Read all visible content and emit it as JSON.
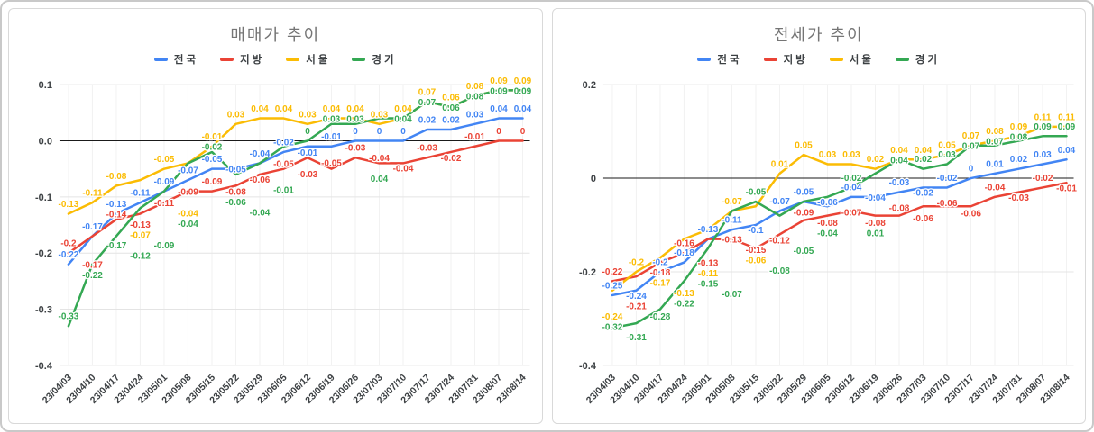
{
  "colors": {
    "nationwide": "#4285f4",
    "regional": "#ea4335",
    "seoul": "#fbbc04",
    "gyeonggi": "#34a853",
    "title_gray": "#757575",
    "axis_text": "#3c4043",
    "gridline": "#e4e4e4",
    "zero_line": "#1a1a1a",
    "panel_border": "#d9d9d9"
  },
  "chart_data": [
    {
      "type": "line",
      "title": "매매가 추이",
      "legend_position": "top",
      "grid": true,
      "ylim": [
        -0.4,
        0.1
      ],
      "y_ticks": [
        {
          "value": 0.1,
          "label": "0.1"
        },
        {
          "value": 0.0,
          "label": "0.0"
        },
        {
          "value": -0.1,
          "label": "-0.1"
        },
        {
          "value": -0.2,
          "label": "-0.2"
        },
        {
          "value": -0.3,
          "label": "-0.3"
        },
        {
          "value": -0.4,
          "label": "-0.4"
        }
      ],
      "categories": [
        "23/04/03",
        "23/04/10",
        "23/04/17",
        "23/04/24",
        "23/05/01",
        "23/05/08",
        "23/05/15",
        "23/05/22",
        "23/05/29",
        "23/06/05",
        "23/06/12",
        "23/06/19",
        "23/06/26",
        "23/07/03",
        "23/07/10",
        "23/07/17",
        "23/07/24",
        "23/07/31",
        "23/08/07",
        "23/08/14"
      ],
      "series": [
        {
          "name": "전국",
          "color": "#4285f4",
          "values": [
            -0.22,
            -0.17,
            -0.13,
            -0.11,
            -0.09,
            -0.07,
            -0.05,
            -0.05,
            -0.04,
            -0.02,
            -0.01,
            -0.01,
            0,
            0,
            0,
            0.02,
            0.02,
            0.03,
            0.04,
            0.04
          ]
        },
        {
          "name": "지방",
          "color": "#ea4335",
          "values": [
            -0.2,
            -0.17,
            -0.14,
            -0.13,
            -0.11,
            -0.09,
            -0.09,
            -0.08,
            -0.06,
            -0.05,
            -0.03,
            -0.05,
            -0.03,
            -0.04,
            -0.04,
            -0.03,
            -0.02,
            -0.01,
            0,
            0
          ]
        },
        {
          "name": "서울",
          "color": "#fbbc04",
          "values": [
            -0.13,
            -0.11,
            -0.08,
            -0.07,
            -0.05,
            -0.04,
            -0.01,
            0.03,
            0.04,
            0.04,
            0.03,
            0.04,
            0.04,
            0.03,
            0.04,
            0.07,
            0.06,
            0.08,
            0.09,
            0.09
          ]
        },
        {
          "name": "경기",
          "color": "#34a853",
          "values": [
            -0.33,
            -0.22,
            -0.17,
            -0.12,
            -0.09,
            -0.04,
            -0.02,
            -0.06,
            -0.04,
            -0.01,
            0,
            0.03,
            0.03,
            0.04,
            0.04,
            0.07,
            0.06,
            0.08,
            0.09,
            0.09
          ]
        }
      ]
    },
    {
      "type": "line",
      "title": "전세가 추이",
      "legend_position": "top",
      "grid": true,
      "ylim": [
        -0.4,
        0.2
      ],
      "y_ticks": [
        {
          "value": 0.2,
          "label": "0.2"
        },
        {
          "value": 0.0,
          "label": "0"
        },
        {
          "value": -0.2,
          "label": "-0.2"
        },
        {
          "value": -0.4,
          "label": "-0.4"
        }
      ],
      "categories": [
        "23/04/03",
        "23/04/10",
        "23/04/17",
        "23/04/24",
        "23/05/01",
        "23/05/08",
        "23/05/15",
        "23/05/22",
        "23/05/29",
        "23/06/05",
        "23/06/12",
        "23/06/19",
        "23/06/26",
        "23/07/03",
        "23/07/10",
        "23/07/17",
        "23/07/24",
        "23/07/31",
        "23/08/07",
        "23/08/14"
      ],
      "series": [
        {
          "name": "전국",
          "color": "#4285f4",
          "values": [
            -0.25,
            -0.24,
            -0.2,
            -0.18,
            -0.13,
            -0.11,
            -0.1,
            -0.07,
            -0.05,
            -0.06,
            -0.04,
            -0.04,
            -0.03,
            -0.02,
            -0.02,
            0,
            0.01,
            0.02,
            0.03,
            0.04
          ]
        },
        {
          "name": "지방",
          "color": "#ea4335",
          "values": [
            -0.22,
            -0.21,
            -0.18,
            -0.16,
            -0.13,
            -0.13,
            -0.15,
            -0.12,
            -0.09,
            -0.08,
            -0.07,
            -0.08,
            -0.08,
            -0.06,
            -0.06,
            -0.06,
            -0.04,
            -0.03,
            -0.02,
            -0.01
          ]
        },
        {
          "name": "서울",
          "color": "#fbbc04",
          "values": [
            -0.24,
            -0.2,
            -0.17,
            -0.13,
            -0.11,
            -0.07,
            -0.06,
            0.01,
            0.05,
            0.03,
            0.03,
            0.02,
            0.04,
            0.04,
            0.05,
            0.07,
            0.08,
            0.09,
            0.11,
            0.11
          ]
        },
        {
          "name": "경기",
          "color": "#34a853",
          "values": [
            -0.32,
            -0.31,
            -0.28,
            -0.22,
            -0.15,
            -0.07,
            -0.05,
            -0.08,
            -0.05,
            -0.04,
            -0.02,
            0.01,
            0.04,
            0.02,
            0.03,
            0.07,
            0.07,
            0.08,
            0.09,
            0.09
          ]
        }
      ]
    }
  ]
}
